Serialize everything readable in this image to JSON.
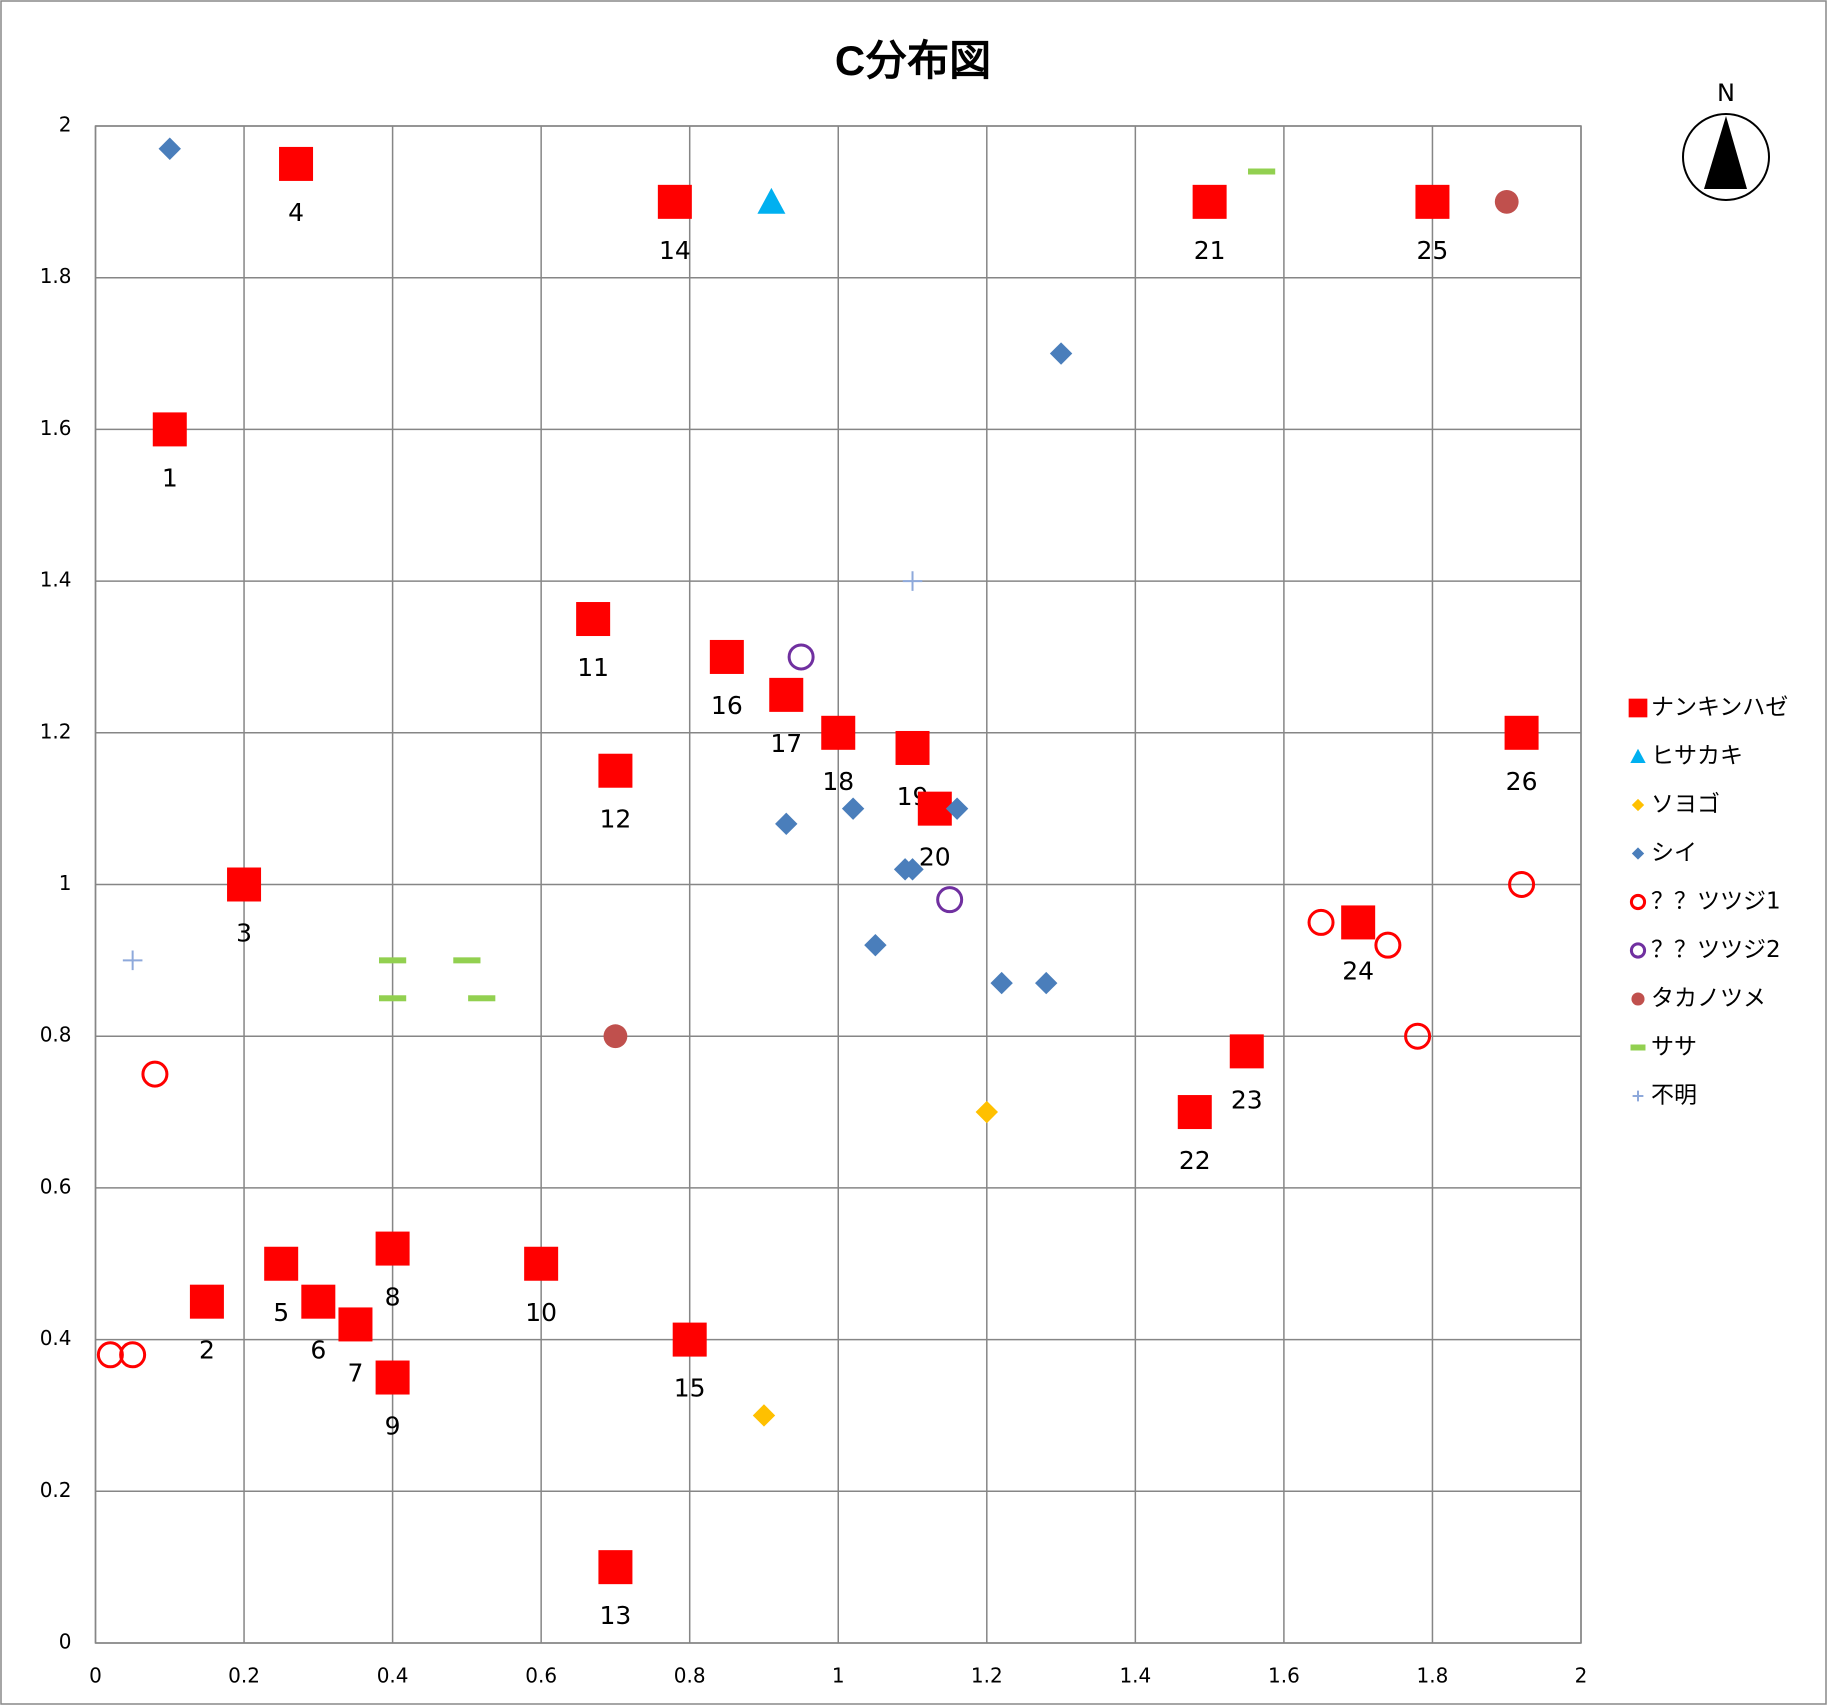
{
  "chart_data": {
    "type": "scatter",
    "title": "C分布図",
    "compass_label": "N",
    "xlim": [
      0,
      2
    ],
    "ylim": [
      0,
      2
    ],
    "xticks": [
      0,
      0.2,
      0.4,
      0.6,
      0.8,
      1,
      1.2,
      1.4,
      1.6,
      1.8,
      2
    ],
    "yticks": [
      0,
      0.2,
      0.4,
      0.6,
      0.8,
      1,
      1.2,
      1.4,
      1.6,
      1.8,
      2
    ],
    "grid": true,
    "legend": "right",
    "series": [
      {
        "name": "ナンキンハゼ",
        "color": "#ff0000",
        "marker": "square",
        "x": [
          0.1,
          0.15,
          0.2,
          0.27,
          0.25,
          0.3,
          0.35,
          0.4,
          0.4,
          0.6,
          0.67,
          0.7,
          0.7,
          0.78,
          0.8,
          0.85,
          0.93,
          1.0,
          1.1,
          1.13,
          1.5,
          1.48,
          1.55,
          1.7,
          1.8,
          1.92
        ],
        "values": [
          1.6,
          0.45,
          1.0,
          1.95,
          0.5,
          0.45,
          0.42,
          0.52,
          0.35,
          0.5,
          1.35,
          1.15,
          0.1,
          1.9,
          0.4,
          1.3,
          1.25,
          1.2,
          1.18,
          1.1,
          1.9,
          0.7,
          0.78,
          0.95,
          1.9,
          1.2
        ],
        "point_labels": [
          1,
          2,
          3,
          4,
          5,
          6,
          7,
          8,
          9,
          10,
          11,
          12,
          13,
          14,
          15,
          16,
          17,
          18,
          19,
          20,
          21,
          22,
          23,
          24,
          25,
          26
        ]
      },
      {
        "name": "ヒサカキ",
        "color": "#00b0f0",
        "marker": "triangle",
        "x": [
          0.91
        ],
        "values": [
          1.9
        ]
      },
      {
        "name": "ソヨゴ",
        "color": "#ffc000",
        "marker": "diamond",
        "x": [
          1.2,
          0.9
        ],
        "values": [
          0.7,
          0.3
        ]
      },
      {
        "name": "シイ",
        "color": "#4a7ebb",
        "marker": "diamond",
        "x": [
          0.1,
          1.3,
          0.93,
          1.02,
          1.16,
          1.09,
          1.1,
          1.05,
          1.22,
          1.28
        ],
        "values": [
          1.97,
          1.7,
          1.08,
          1.1,
          1.1,
          1.02,
          1.02,
          0.92,
          0.87,
          0.87
        ]
      },
      {
        "name": "？？ツツジ1",
        "color": "#ff0000",
        "marker": "ring",
        "x": [
          0.02,
          0.05,
          0.08,
          1.65,
          1.74,
          1.78,
          1.92
        ],
        "values": [
          0.38,
          0.38,
          0.75,
          0.95,
          0.92,
          0.8,
          1.0
        ]
      },
      {
        "name": "？？ツツジ2",
        "color": "#7030a0",
        "marker": "ring",
        "x": [
          0.95,
          1.15
        ],
        "values": [
          1.3,
          0.98
        ]
      },
      {
        "name": "タカノツメ",
        "color": "#c0504d",
        "marker": "circle",
        "x": [
          0.7,
          1.9
        ],
        "values": [
          0.8,
          1.9
        ]
      },
      {
        "name": "ササ",
        "color": "#92d050",
        "marker": "dash",
        "x": [
          1.57,
          0.4,
          0.5,
          0.4,
          0.52
        ],
        "values": [
          1.94,
          0.9,
          0.9,
          0.85,
          0.85
        ]
      },
      {
        "name": "不明",
        "color": "#8ea9db",
        "marker": "plus",
        "x": [
          0.05,
          1.1
        ],
        "values": [
          0.9,
          1.4
        ]
      }
    ]
  }
}
